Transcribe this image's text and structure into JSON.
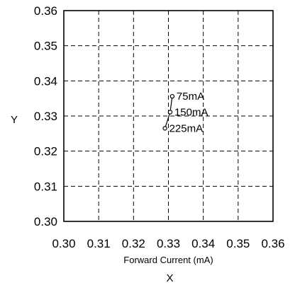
{
  "chart_data": {
    "type": "scatter",
    "title": "",
    "xlabel": "X",
    "ylabel": "Y",
    "x_subtitle": "Forward Current (mA)",
    "xlim": [
      0.3,
      0.36
    ],
    "ylim": [
      0.3,
      0.36
    ],
    "xticks": [
      "0.30",
      "0.31",
      "0.32",
      "0.33",
      "0.34",
      "0.35",
      "0.36"
    ],
    "yticks": [
      "0.30",
      "0.31",
      "0.32",
      "0.33",
      "0.34",
      "0.35",
      "0.36"
    ],
    "grid": true,
    "grid_style": "dashed",
    "series": [
      {
        "points": [
          {
            "x": 0.3311,
            "y": 0.3356,
            "label": "75mA"
          },
          {
            "x": 0.3305,
            "y": 0.3311,
            "label": "150mA"
          },
          {
            "x": 0.329,
            "y": 0.3265,
            "label": "225mA"
          }
        ]
      }
    ]
  }
}
